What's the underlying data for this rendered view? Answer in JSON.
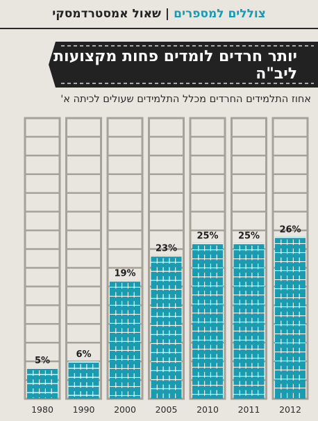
{
  "header": {
    "series": "צוללים למספרים",
    "separator": "|",
    "author": "שאול אמסטרדמסקי"
  },
  "colors": {
    "accent": "#1a9bb0",
    "track": "#a6a199",
    "background": "#e8e6df",
    "banner": "#222222"
  },
  "chart_data": {
    "type": "bar",
    "title": "יותר חרדים לומדים פחות מקצועות ליב\"ה",
    "subtitle": "אחוז התלמידים החרדים מכלל התלמידים שעולים לכיתה א'",
    "categories": [
      "1980",
      "1990",
      "2000",
      "2005",
      "2010",
      "2011",
      "2012"
    ],
    "values": [
      5,
      6,
      19,
      23,
      25,
      25,
      26
    ],
    "value_labels": [
      "5%",
      "6%",
      "19%",
      "23%",
      "25%",
      "25%",
      "26%"
    ],
    "ylim": [
      0,
      45
    ],
    "grid": false,
    "legend": "none"
  }
}
